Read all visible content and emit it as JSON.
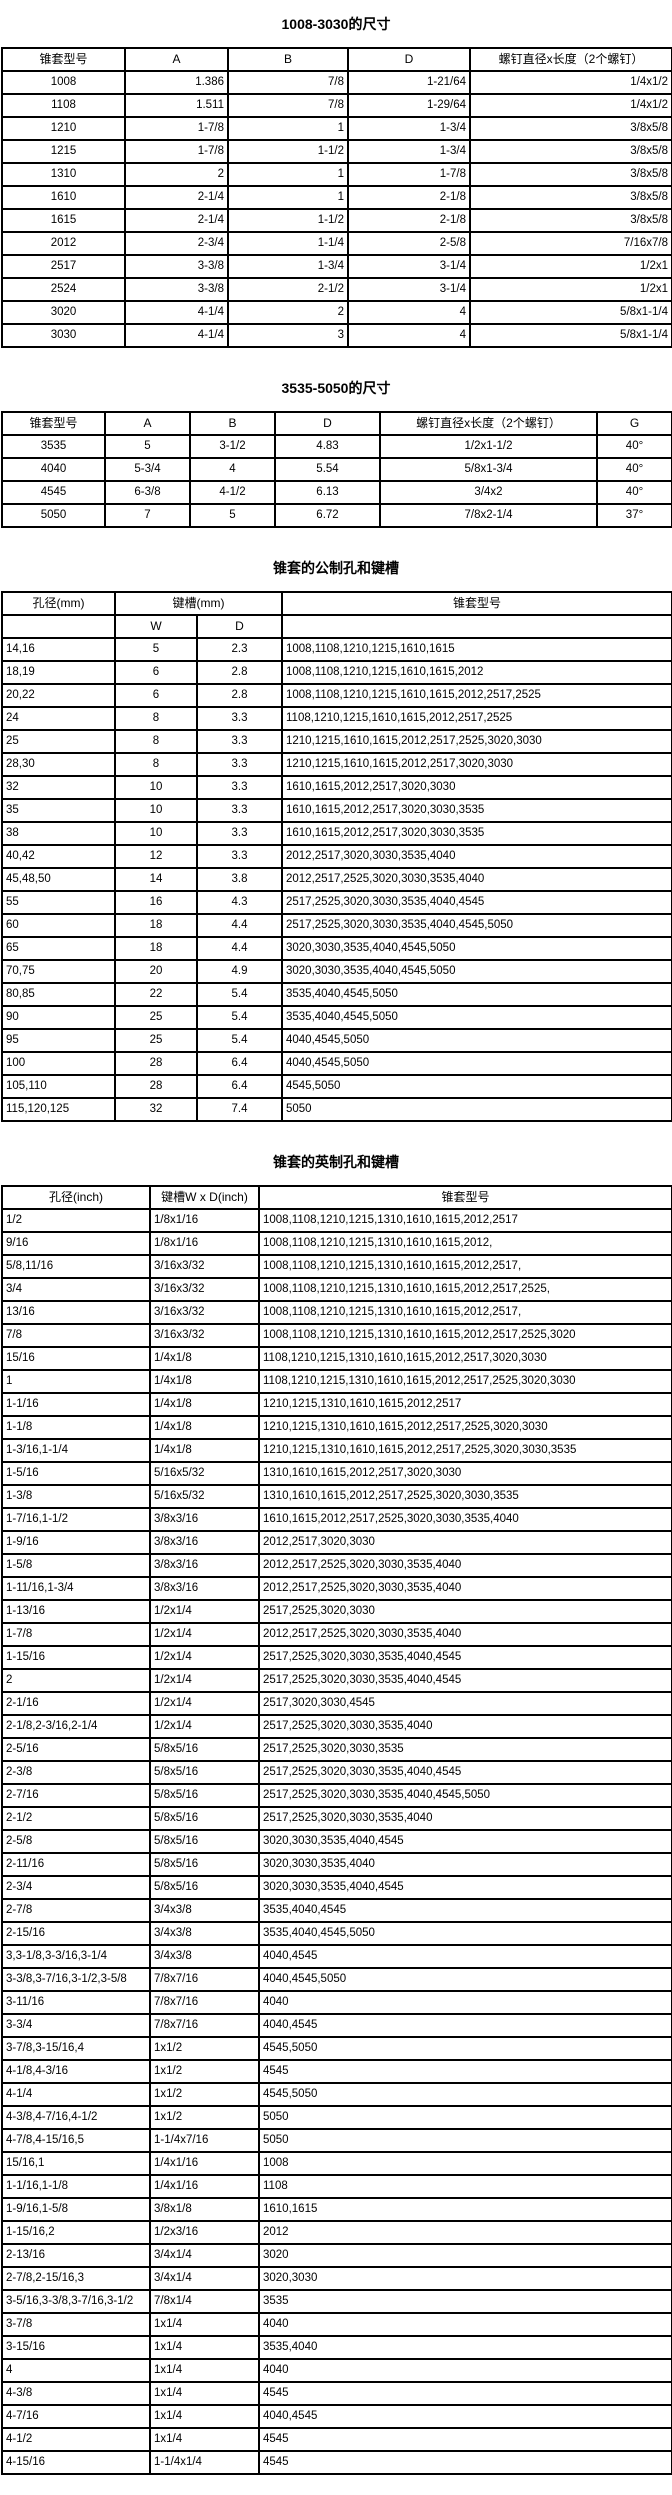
{
  "page": {
    "background_color": "#ffffff",
    "text_color": "#000000",
    "border_color": "#000000"
  },
  "section1": {
    "title": "1008-3030的尺寸",
    "columns": [
      "锥套型号",
      "A",
      "B",
      "D",
      "螺钉直径x长度（2个螺钉）"
    ],
    "rows": [
      [
        "1008",
        "1.386",
        "7/8",
        "1-21/64",
        "1/4x1/2"
      ],
      [
        "1108",
        "1.511",
        "7/8",
        "1-29/64",
        "1/4x1/2"
      ],
      [
        "1210",
        "1-7/8",
        "1",
        "1-3/4",
        "3/8x5/8"
      ],
      [
        "1215",
        "1-7/8",
        "1-1/2",
        "1-3/4",
        "3/8x5/8"
      ],
      [
        "1310",
        "2",
        "1",
        "1-7/8",
        "3/8x5/8"
      ],
      [
        "1610",
        "2-1/4",
        "1",
        "2-1/8",
        "3/8x5/8"
      ],
      [
        "1615",
        "2-1/4",
        "1-1/2",
        "2-1/8",
        "3/8x5/8"
      ],
      [
        "2012",
        "2-3/4",
        "1-1/4",
        "2-5/8",
        "7/16x7/8"
      ],
      [
        "2517",
        "3-3/8",
        "1-3/4",
        "3-1/4",
        "1/2x1"
      ],
      [
        "2524",
        "3-3/8",
        "2-1/2",
        "3-1/4",
        "1/2x1"
      ],
      [
        "3020",
        "4-1/4",
        "2",
        "4",
        "5/8x1-1/4"
      ],
      [
        "3030",
        "4-1/4",
        "3",
        "4",
        "5/8x1-1/4"
      ]
    ]
  },
  "section2": {
    "title": "3535-5050的尺寸",
    "columns": [
      "锥套型号",
      "A",
      "B",
      "D",
      "螺钉直径x长度（2个螺钉）",
      "G"
    ],
    "rows": [
      [
        "3535",
        "5",
        "3-1/2",
        "4.83",
        "1/2x1-1/2",
        "40°"
      ],
      [
        "4040",
        "5-3/4",
        "4",
        "5.54",
        "5/8x1-3/4",
        "40°"
      ],
      [
        "4545",
        "6-3/8",
        "4-1/2",
        "6.13",
        "3/4x2",
        "40°"
      ],
      [
        "5050",
        "7",
        "5",
        "6.72",
        "7/8x2-1/4",
        "37°"
      ]
    ]
  },
  "section3": {
    "title": "锥套的公制孔和键槽",
    "header": {
      "col_bore": "孔径(mm)",
      "col_keyway": "键槽(mm)",
      "col_w": "W",
      "col_d": "D",
      "col_models": "锥套型号"
    },
    "rows": [
      [
        "14,16",
        "5",
        "2.3",
        "1008,1108,1210,1215,1610,1615"
      ],
      [
        "18,19",
        "6",
        "2.8",
        "1008,1108,1210,1215,1610,1615,2012"
      ],
      [
        "20,22",
        "6",
        "2.8",
        "1008,1108,1210,1215,1610,1615,2012,2517,2525"
      ],
      [
        "24",
        "8",
        "3.3",
        "1108,1210,1215,1610,1615,2012,2517,2525"
      ],
      [
        "25",
        "8",
        "3.3",
        "1210,1215,1610,1615,2012,2517,2525,3020,3030"
      ],
      [
        "28,30",
        "8",
        "3.3",
        "1210,1215,1610,1615,2012,2517,3020,3030"
      ],
      [
        "32",
        "10",
        "3.3",
        "1610,1615,2012,2517,3020,3030"
      ],
      [
        "35",
        "10",
        "3.3",
        "1610,1615,2012,2517,3020,3030,3535"
      ],
      [
        "38",
        "10",
        "3.3",
        "1610,1615,2012,2517,3020,3030,3535"
      ],
      [
        "40,42",
        "12",
        "3.3",
        "2012,2517,3020,3030,3535,4040"
      ],
      [
        "45,48,50",
        "14",
        "3.8",
        "2012,2517,2525,3020,3030,3535,4040"
      ],
      [
        "55",
        "16",
        "4.3",
        "2517,2525,3020,3030,3535,4040,4545"
      ],
      [
        "60",
        "18",
        "4.4",
        "2517,2525,3020,3030,3535,4040,4545,5050"
      ],
      [
        "65",
        "18",
        "4.4",
        "3020,3030,3535,4040,4545,5050"
      ],
      [
        "70,75",
        "20",
        "4.9",
        "3020,3030,3535,4040,4545,5050"
      ],
      [
        "80,85",
        "22",
        "5.4",
        "3535,4040,4545,5050"
      ],
      [
        "90",
        "25",
        "5.4",
        "3535,4040,4545,5050"
      ],
      [
        "95",
        "25",
        "5.4",
        "4040,4545,5050"
      ],
      [
        "100",
        "28",
        "6.4",
        "4040,4545,5050"
      ],
      [
        "105,110",
        "28",
        "6.4",
        "4545,5050"
      ],
      [
        "115,120,125",
        "32",
        "7.4",
        "5050"
      ]
    ]
  },
  "section4": {
    "title": "锥套的英制孔和键槽",
    "columns": [
      "孔径(inch)",
      "键槽W x D(inch)",
      "锥套型号"
    ],
    "rows": [
      [
        "1/2",
        "1/8x1/16",
        "1008,1108,1210,1215,1310,1610,1615,2012,2517"
      ],
      [
        "9/16",
        "1/8x1/16",
        "1008,1108,1210,1215,1310,1610,1615,2012,"
      ],
      [
        "5/8,11/16",
        "3/16x3/32",
        "1008,1108,1210,1215,1310,1610,1615,2012,2517,"
      ],
      [
        "3/4",
        "3/16x3/32",
        "1008,1108,1210,1215,1310,1610,1615,2012,2517,2525,"
      ],
      [
        "13/16",
        "3/16x3/32",
        "1008,1108,1210,1215,1310,1610,1615,2012,2517,"
      ],
      [
        "7/8",
        "3/16x3/32",
        "1008,1108,1210,1215,1310,1610,1615,2012,2517,2525,3020"
      ],
      [
        "15/16",
        "1/4x1/8",
        "1108,1210,1215,1310,1610,1615,2012,2517,3020,3030"
      ],
      [
        "1",
        "1/4x1/8",
        "1108,1210,1215,1310,1610,1615,2012,2517,2525,3020,3030"
      ],
      [
        "1-1/16",
        "1/4x1/8",
        "1210,1215,1310,1610,1615,2012,2517"
      ],
      [
        "1-1/8",
        "1/4x1/8",
        "1210,1215,1310,1610,1615,2012,2517,2525,3020,3030"
      ],
      [
        "1-3/16,1-1/4",
        "1/4x1/8",
        "1210,1215,1310,1610,1615,2012,2517,2525,3020,3030,3535"
      ],
      [
        "1-5/16",
        "5/16x5/32",
        "1310,1610,1615,2012,2517,3020,3030"
      ],
      [
        "1-3/8",
        "5/16x5/32",
        "1310,1610,1615,2012,2517,2525,3020,3030,3535"
      ],
      [
        "1-7/16,1-1/2",
        "3/8x3/16",
        "1610,1615,2012,2517,2525,3020,3030,3535,4040"
      ],
      [
        "1-9/16",
        "3/8x3/16",
        "2012,2517,3020,3030"
      ],
      [
        "1-5/8",
        "3/8x3/16",
        "2012,2517,2525,3020,3030,3535,4040"
      ],
      [
        "1-11/16,1-3/4",
        "3/8x3/16",
        "2012,2517,2525,3020,3030,3535,4040"
      ],
      [
        "1-13/16",
        "1/2x1/4",
        "2517,2525,3020,3030"
      ],
      [
        "1-7/8",
        "1/2x1/4",
        "2012,2517,2525,3020,3030,3535,4040"
      ],
      [
        "1-15/16",
        "1/2x1/4",
        "2517,2525,3020,3030,3535,4040,4545"
      ],
      [
        "2",
        "1/2x1/4",
        "2517,2525,3020,3030,3535,4040,4545"
      ],
      [
        "2-1/16",
        "1/2x1/4",
        "2517,3020,3030,4545"
      ],
      [
        "2-1/8,2-3/16,2-1/4",
        "1/2x1/4",
        "2517,2525,3020,3030,3535,4040"
      ],
      [
        "2-5/16",
        "5/8x5/16",
        "2517,2525,3020,3030,3535"
      ],
      [
        "2-3/8",
        "5/8x5/16",
        "2517,2525,3020,3030,3535,4040,4545"
      ],
      [
        "2-7/16",
        "5/8x5/16",
        "2517,2525,3020,3030,3535,4040,4545,5050"
      ],
      [
        "2-1/2",
        "5/8x5/16",
        "2517,2525,3020,3030,3535,4040"
      ],
      [
        "2-5/8",
        "5/8x5/16",
        "3020,3030,3535,4040,4545"
      ],
      [
        "2-11/16",
        "5/8x5/16",
        "3020,3030,3535,4040"
      ],
      [
        "2-3/4",
        "5/8x5/16",
        "3020,3030,3535,4040,4545"
      ],
      [
        "2-7/8",
        "3/4x3/8",
        "3535,4040,4545"
      ],
      [
        "2-15/16",
        "3/4x3/8",
        "3535,4040,4545,5050"
      ],
      [
        "3,3-1/8,3-3/16,3-1/4",
        "3/4x3/8",
        "4040,4545"
      ],
      [
        "3-3/8,3-7/16,3-1/2,3-5/8",
        "7/8x7/16",
        "4040,4545,5050"
      ],
      [
        "3-11/16",
        "7/8x7/16",
        "4040"
      ],
      [
        "3-3/4",
        "7/8x7/16",
        "4040,4545"
      ],
      [
        "3-7/8,3-15/16,4",
        "1x1/2",
        "4545,5050"
      ],
      [
        "4-1/8,4-3/16",
        "1x1/2",
        "4545"
      ],
      [
        "4-1/4",
        "1x1/2",
        "4545,5050"
      ],
      [
        "4-3/8,4-7/16,4-1/2",
        "1x1/2",
        "5050"
      ],
      [
        "4-7/8,4-15/16,5",
        "1-1/4x7/16",
        "5050"
      ],
      [
        "15/16,1",
        "1/4x1/16",
        "1008"
      ],
      [
        "1-1/16,1-1/8",
        "1/4x1/16",
        "1108"
      ],
      [
        "1-9/16,1-5/8",
        "3/8x1/8",
        "1610,1615"
      ],
      [
        "1-15/16,2",
        "1/2x3/16",
        "2012"
      ],
      [
        "2-13/16",
        "3/4x1/4",
        "3020"
      ],
      [
        "2-7/8,2-15/16,3",
        "3/4x1/4",
        "3020,3030"
      ],
      [
        "3-5/16,3-3/8,3-7/16,3-1/2",
        "7/8x1/4",
        "3535"
      ],
      [
        "3-7/8",
        "1x1/4",
        "4040"
      ],
      [
        "3-15/16",
        "1x1/4",
        "3535,4040"
      ],
      [
        "4",
        "1x1/4",
        "4040"
      ],
      [
        "4-3/8",
        "1x1/4",
        "4545"
      ],
      [
        "4-7/16",
        "1x1/4",
        "4040,4545"
      ],
      [
        "4-1/2",
        "1x1/4",
        "4545"
      ],
      [
        "4-15/16",
        "1-1/4x1/4",
        "4545"
      ]
    ]
  }
}
